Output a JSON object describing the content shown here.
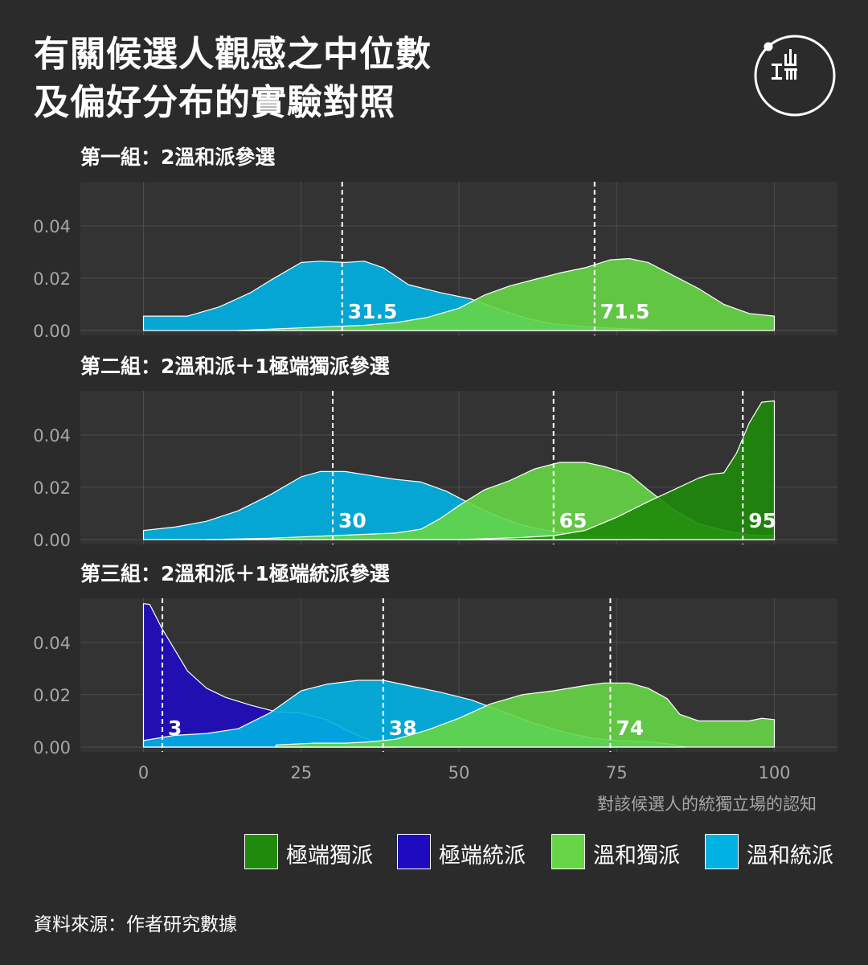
{
  "title_lines": [
    "有關候選人觀感之中位數",
    "及偏好分布的實驗對照"
  ],
  "source": "資料來源：作者研究數據",
  "colors": {
    "background": "#2b2b2b",
    "panel_bg": "#333333",
    "grid": "#4d4d4d",
    "extreme_independence": "#1f8a0b",
    "extreme_unification": "#1f0bbf",
    "moderate_independence": "#66d646",
    "moderate_unification": "#00b2e4"
  },
  "chart_data": {
    "type": "area",
    "xlabel": "對該候選人的統獨立場的認知",
    "ylabel": "",
    "xlim": [
      -10,
      110
    ],
    "x_ticks": [
      "0",
      "25",
      "50",
      "75",
      "100"
    ],
    "y_ticks": [
      "0.00",
      "0.02",
      "0.04"
    ],
    "legend": [
      {
        "key": "extreme_independence",
        "label": "極端獨派"
      },
      {
        "key": "extreme_unification",
        "label": "極端統派"
      },
      {
        "key": "moderate_independence",
        "label": "溫和獨派"
      },
      {
        "key": "moderate_unification",
        "label": "溫和統派"
      }
    ],
    "panels": [
      {
        "title": "第一組：2溫和派參選",
        "ylim": [
          0,
          0.055
        ],
        "medians": [
          {
            "value": 31.5,
            "label": "31.5"
          },
          {
            "value": 71.5,
            "label": "71.5"
          }
        ],
        "series": [
          {
            "key": "moderate_unification",
            "points": [
              [
                0,
                0.0055
              ],
              [
                3,
                0.0055
              ],
              [
                7,
                0.0055
              ],
              [
                12,
                0.009
              ],
              [
                17,
                0.0145
              ],
              [
                20,
                0.019
              ],
              [
                25,
                0.026
              ],
              [
                28,
                0.0265
              ],
              [
                32,
                0.026
              ],
              [
                35,
                0.0265
              ],
              [
                38,
                0.024
              ],
              [
                42,
                0.0175
              ],
              [
                47,
                0.0145
              ],
              [
                52,
                0.012
              ],
              [
                57,
                0.0075
              ],
              [
                61,
                0.0045
              ],
              [
                65,
                0.0025
              ],
              [
                70,
                0.0015
              ],
              [
                75,
                0.0008
              ],
              [
                80,
                0.0003
              ],
              [
                82,
                0
              ]
            ]
          },
          {
            "key": "moderate_independence",
            "points": [
              [
                15,
                0
              ],
              [
                20,
                0.0005
              ],
              [
                25,
                0.001
              ],
              [
                30,
                0.0015
              ],
              [
                35,
                0.002
              ],
              [
                40,
                0.003
              ],
              [
                45,
                0.005
              ],
              [
                50,
                0.0085
              ],
              [
                54,
                0.0135
              ],
              [
                58,
                0.017
              ],
              [
                62,
                0.0195
              ],
              [
                66,
                0.022
              ],
              [
                70,
                0.024
              ],
              [
                74,
                0.027
              ],
              [
                77,
                0.0275
              ],
              [
                80,
                0.026
              ],
              [
                84,
                0.021
              ],
              [
                88,
                0.016
              ],
              [
                92,
                0.01
              ],
              [
                96,
                0.0065
              ],
              [
                100,
                0.0055
              ],
              [
                100,
                0
              ]
            ]
          }
        ]
      },
      {
        "title": "第二組：2溫和派＋1極端獨派參選",
        "ylim": [
          0,
          0.055
        ],
        "medians": [
          {
            "value": 30,
            "label": "30"
          },
          {
            "value": 65,
            "label": "65"
          },
          {
            "value": 95,
            "label": "95"
          }
        ],
        "series": [
          {
            "key": "moderate_unification",
            "points": [
              [
                0,
                0.0035
              ],
              [
                5,
                0.0048
              ],
              [
                10,
                0.007
              ],
              [
                15,
                0.011
              ],
              [
                20,
                0.017
              ],
              [
                25,
                0.024
              ],
              [
                28,
                0.026
              ],
              [
                32,
                0.026
              ],
              [
                36,
                0.0245
              ],
              [
                40,
                0.023
              ],
              [
                44,
                0.022
              ],
              [
                48,
                0.0185
              ],
              [
                52,
                0.0135
              ],
              [
                56,
                0.009
              ],
              [
                60,
                0.0055
              ],
              [
                65,
                0.003
              ],
              [
                70,
                0.0015
              ],
              [
                75,
                0.0008
              ],
              [
                80,
                0.0003
              ],
              [
                82,
                0
              ]
            ]
          },
          {
            "key": "moderate_independence",
            "points": [
              [
                10,
                0
              ],
              [
                20,
                0.0005
              ],
              [
                25,
                0.001
              ],
              [
                30,
                0.0015
              ],
              [
                35,
                0.002
              ],
              [
                40,
                0.0025
              ],
              [
                44,
                0.004
              ],
              [
                47,
                0.008
              ],
              [
                50,
                0.013
              ],
              [
                54,
                0.019
              ],
              [
                58,
                0.0225
              ],
              [
                62,
                0.027
              ],
              [
                66,
                0.0295
              ],
              [
                70,
                0.0295
              ],
              [
                73,
                0.028
              ],
              [
                77,
                0.025
              ],
              [
                80,
                0.019
              ],
              [
                84,
                0.0115
              ],
              [
                88,
                0.006
              ],
              [
                92,
                0.0035
              ],
              [
                96,
                0.0018
              ],
              [
                100,
                0.0015
              ],
              [
                100,
                0
              ]
            ]
          },
          {
            "key": "extreme_independence",
            "points": [
              [
                50,
                0
              ],
              [
                60,
                0.0008
              ],
              [
                65,
                0.0015
              ],
              [
                70,
                0.0035
              ],
              [
                75,
                0.0085
              ],
              [
                80,
                0.0145
              ],
              [
                84,
                0.019
              ],
              [
                88,
                0.0235
              ],
              [
                90,
                0.025
              ],
              [
                92,
                0.0255
              ],
              [
                94,
                0.033
              ],
              [
                96,
                0.0445
              ],
              [
                98,
                0.0525
              ],
              [
                100,
                0.053
              ],
              [
                100,
                0
              ]
            ]
          }
        ]
      },
      {
        "title": "第三組：2溫和派＋1極端統派參選",
        "ylim": [
          0,
          0.055
        ],
        "medians": [
          {
            "value": 3,
            "label": "3"
          },
          {
            "value": 38,
            "label": "38"
          },
          {
            "value": 74,
            "label": "74"
          }
        ],
        "series": [
          {
            "key": "extreme_unification",
            "points": [
              [
                0,
                0
              ],
              [
                0,
                0.0548
              ],
              [
                1,
                0.0545
              ],
              [
                3,
                0.045
              ],
              [
                5,
                0.037
              ],
              [
                7,
                0.029
              ],
              [
                10,
                0.0225
              ],
              [
                13,
                0.019
              ],
              [
                17,
                0.016
              ],
              [
                21,
                0.0135
              ],
              [
                25,
                0.013
              ],
              [
                29,
                0.0105
              ],
              [
                33,
                0.0055
              ],
              [
                36,
                0.0025
              ],
              [
                38,
                0.001
              ],
              [
                40,
                0
              ]
            ]
          },
          {
            "key": "moderate_unification",
            "points": [
              [
                0,
                0.0025
              ],
              [
                5,
                0.0045
              ],
              [
                10,
                0.0052
              ],
              [
                15,
                0.007
              ],
              [
                20,
                0.013
              ],
              [
                25,
                0.0215
              ],
              [
                29,
                0.024
              ],
              [
                34,
                0.0255
              ],
              [
                38,
                0.0255
              ],
              [
                42,
                0.0235
              ],
              [
                47,
                0.021
              ],
              [
                52,
                0.018
              ],
              [
                57,
                0.0135
              ],
              [
                62,
                0.009
              ],
              [
                67,
                0.0055
              ],
              [
                71,
                0.0035
              ],
              [
                75,
                0.0025
              ],
              [
                80,
                0.002
              ],
              [
                84,
                0.001
              ],
              [
                86,
                0
              ]
            ]
          },
          {
            "key": "moderate_independence",
            "points": [
              [
                21,
                0
              ],
              [
                21,
                0.0008
              ],
              [
                27,
                0.0015
              ],
              [
                32,
                0.0015
              ],
              [
                36,
                0.002
              ],
              [
                40,
                0.003
              ],
              [
                45,
                0.0065
              ],
              [
                50,
                0.011
              ],
              [
                55,
                0.0165
              ],
              [
                60,
                0.02
              ],
              [
                65,
                0.0215
              ],
              [
                70,
                0.0235
              ],
              [
                73,
                0.0245
              ],
              [
                77,
                0.0245
              ],
              [
                80,
                0.0225
              ],
              [
                83,
                0.0185
              ],
              [
                85,
                0.0125
              ],
              [
                88,
                0.01
              ],
              [
                92,
                0.01
              ],
              [
                96,
                0.01
              ],
              [
                98,
                0.011
              ],
              [
                100,
                0.0105
              ],
              [
                100,
                0
              ]
            ]
          }
        ]
      }
    ]
  }
}
